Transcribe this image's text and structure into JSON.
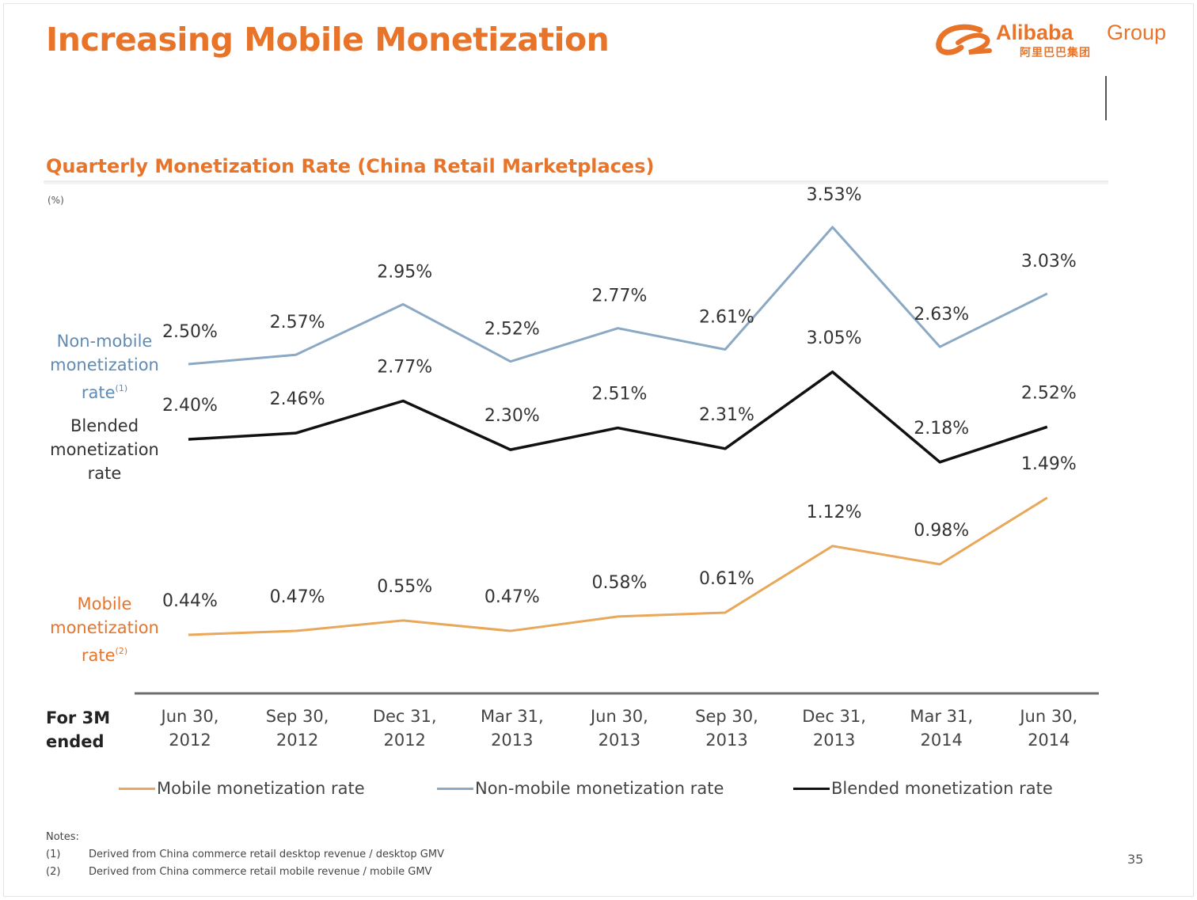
{
  "slide": {
    "title": "Increasing Mobile Monetization",
    "page_number": "35"
  },
  "brand": {
    "name": "Alibaba",
    "group": "Group",
    "chinese": "阿里巴巴集团",
    "color": "#e8742a"
  },
  "series_labels": {
    "nonmobile": "Non-mobile monetization rate",
    "nonmobile_note": "(1)",
    "blended": "Blended monetization rate",
    "mobile": "Mobile monetization rate",
    "mobile_note": "(2)"
  },
  "legend": {
    "mobile": "Mobile monetization rate",
    "nonmobile": "Non-mobile monetization rate",
    "blended": "Blended monetization rate"
  },
  "notes": {
    "heading": "Notes:",
    "items": [
      {
        "num": "(1)",
        "text": "Derived from China commerce retail desktop revenue / desktop GMV"
      },
      {
        "num": "(2)",
        "text": "Derived from China commerce retail mobile revenue / mobile GMV"
      }
    ]
  },
  "chart_data": {
    "type": "line",
    "title": "Quarterly Monetization Rate (China Retail Marketplaces)",
    "unit_label": "(%)",
    "xlabel": "For 3M ended",
    "categories": [
      [
        "Jun 30,",
        "2012"
      ],
      [
        "Sep 30,",
        "2012"
      ],
      [
        "Dec 31,",
        "2012"
      ],
      [
        "Mar 31,",
        "2013"
      ],
      [
        "Jun 30,",
        "2013"
      ],
      [
        "Sep 30,",
        "2013"
      ],
      [
        "Dec 31,",
        "2013"
      ],
      [
        "Mar 31,",
        "2014"
      ],
      [
        "Jun 30,",
        "2014"
      ]
    ],
    "series": [
      {
        "name": "Non-mobile monetization rate",
        "color": "#8ba9c4",
        "values": [
          2.5,
          2.57,
          2.95,
          2.52,
          2.77,
          2.61,
          3.53,
          2.63,
          3.03
        ],
        "labels": [
          "2.50%",
          "2.57%",
          "2.95%",
          "2.52%",
          "2.77%",
          "2.61%",
          "3.53%",
          "2.63%",
          "3.03%"
        ]
      },
      {
        "name": "Blended monetization rate",
        "color": "#111111",
        "values": [
          2.4,
          2.46,
          2.77,
          2.3,
          2.51,
          2.31,
          3.05,
          2.18,
          2.52
        ],
        "labels": [
          "2.40%",
          "2.46%",
          "2.77%",
          "2.30%",
          "2.51%",
          "2.31%",
          "3.05%",
          "2.18%",
          "2.52%"
        ]
      },
      {
        "name": "Mobile monetization rate",
        "color": "#e9a75a",
        "values": [
          0.44,
          0.47,
          0.55,
          0.47,
          0.58,
          0.61,
          1.12,
          0.98,
          1.49
        ],
        "labels": [
          "0.44%",
          "0.47%",
          "0.55%",
          "0.47%",
          "0.58%",
          "0.61%",
          "1.12%",
          "0.98%",
          "1.49%"
        ]
      }
    ],
    "ylim": [
      0,
      4
    ],
    "grid": false,
    "legend_position": "bottom",
    "axis_color": "#6d6d6d"
  }
}
